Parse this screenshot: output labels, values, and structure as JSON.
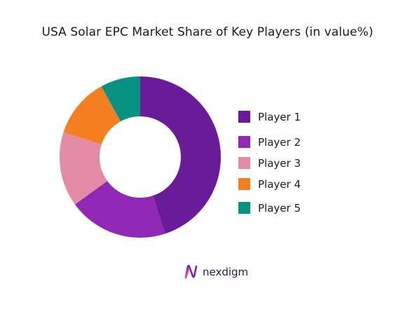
{
  "chart_data": {
    "type": "pie",
    "donut": true,
    "title": "USA Solar EPC Market Share of Key Players (in value%)",
    "categories": [
      "Player 1",
      "Player 2",
      "Player 3",
      "Player 4",
      "Player 5"
    ],
    "values": [
      45,
      20,
      15,
      12,
      8
    ],
    "colors": [
      "#6a1b9a",
      "#9127b5",
      "#e38ba4",
      "#f47e20",
      "#079181"
    ],
    "legend_position": "right"
  },
  "brand": {
    "name": "nexdigm",
    "logo_color": "#7b2a9e"
  }
}
